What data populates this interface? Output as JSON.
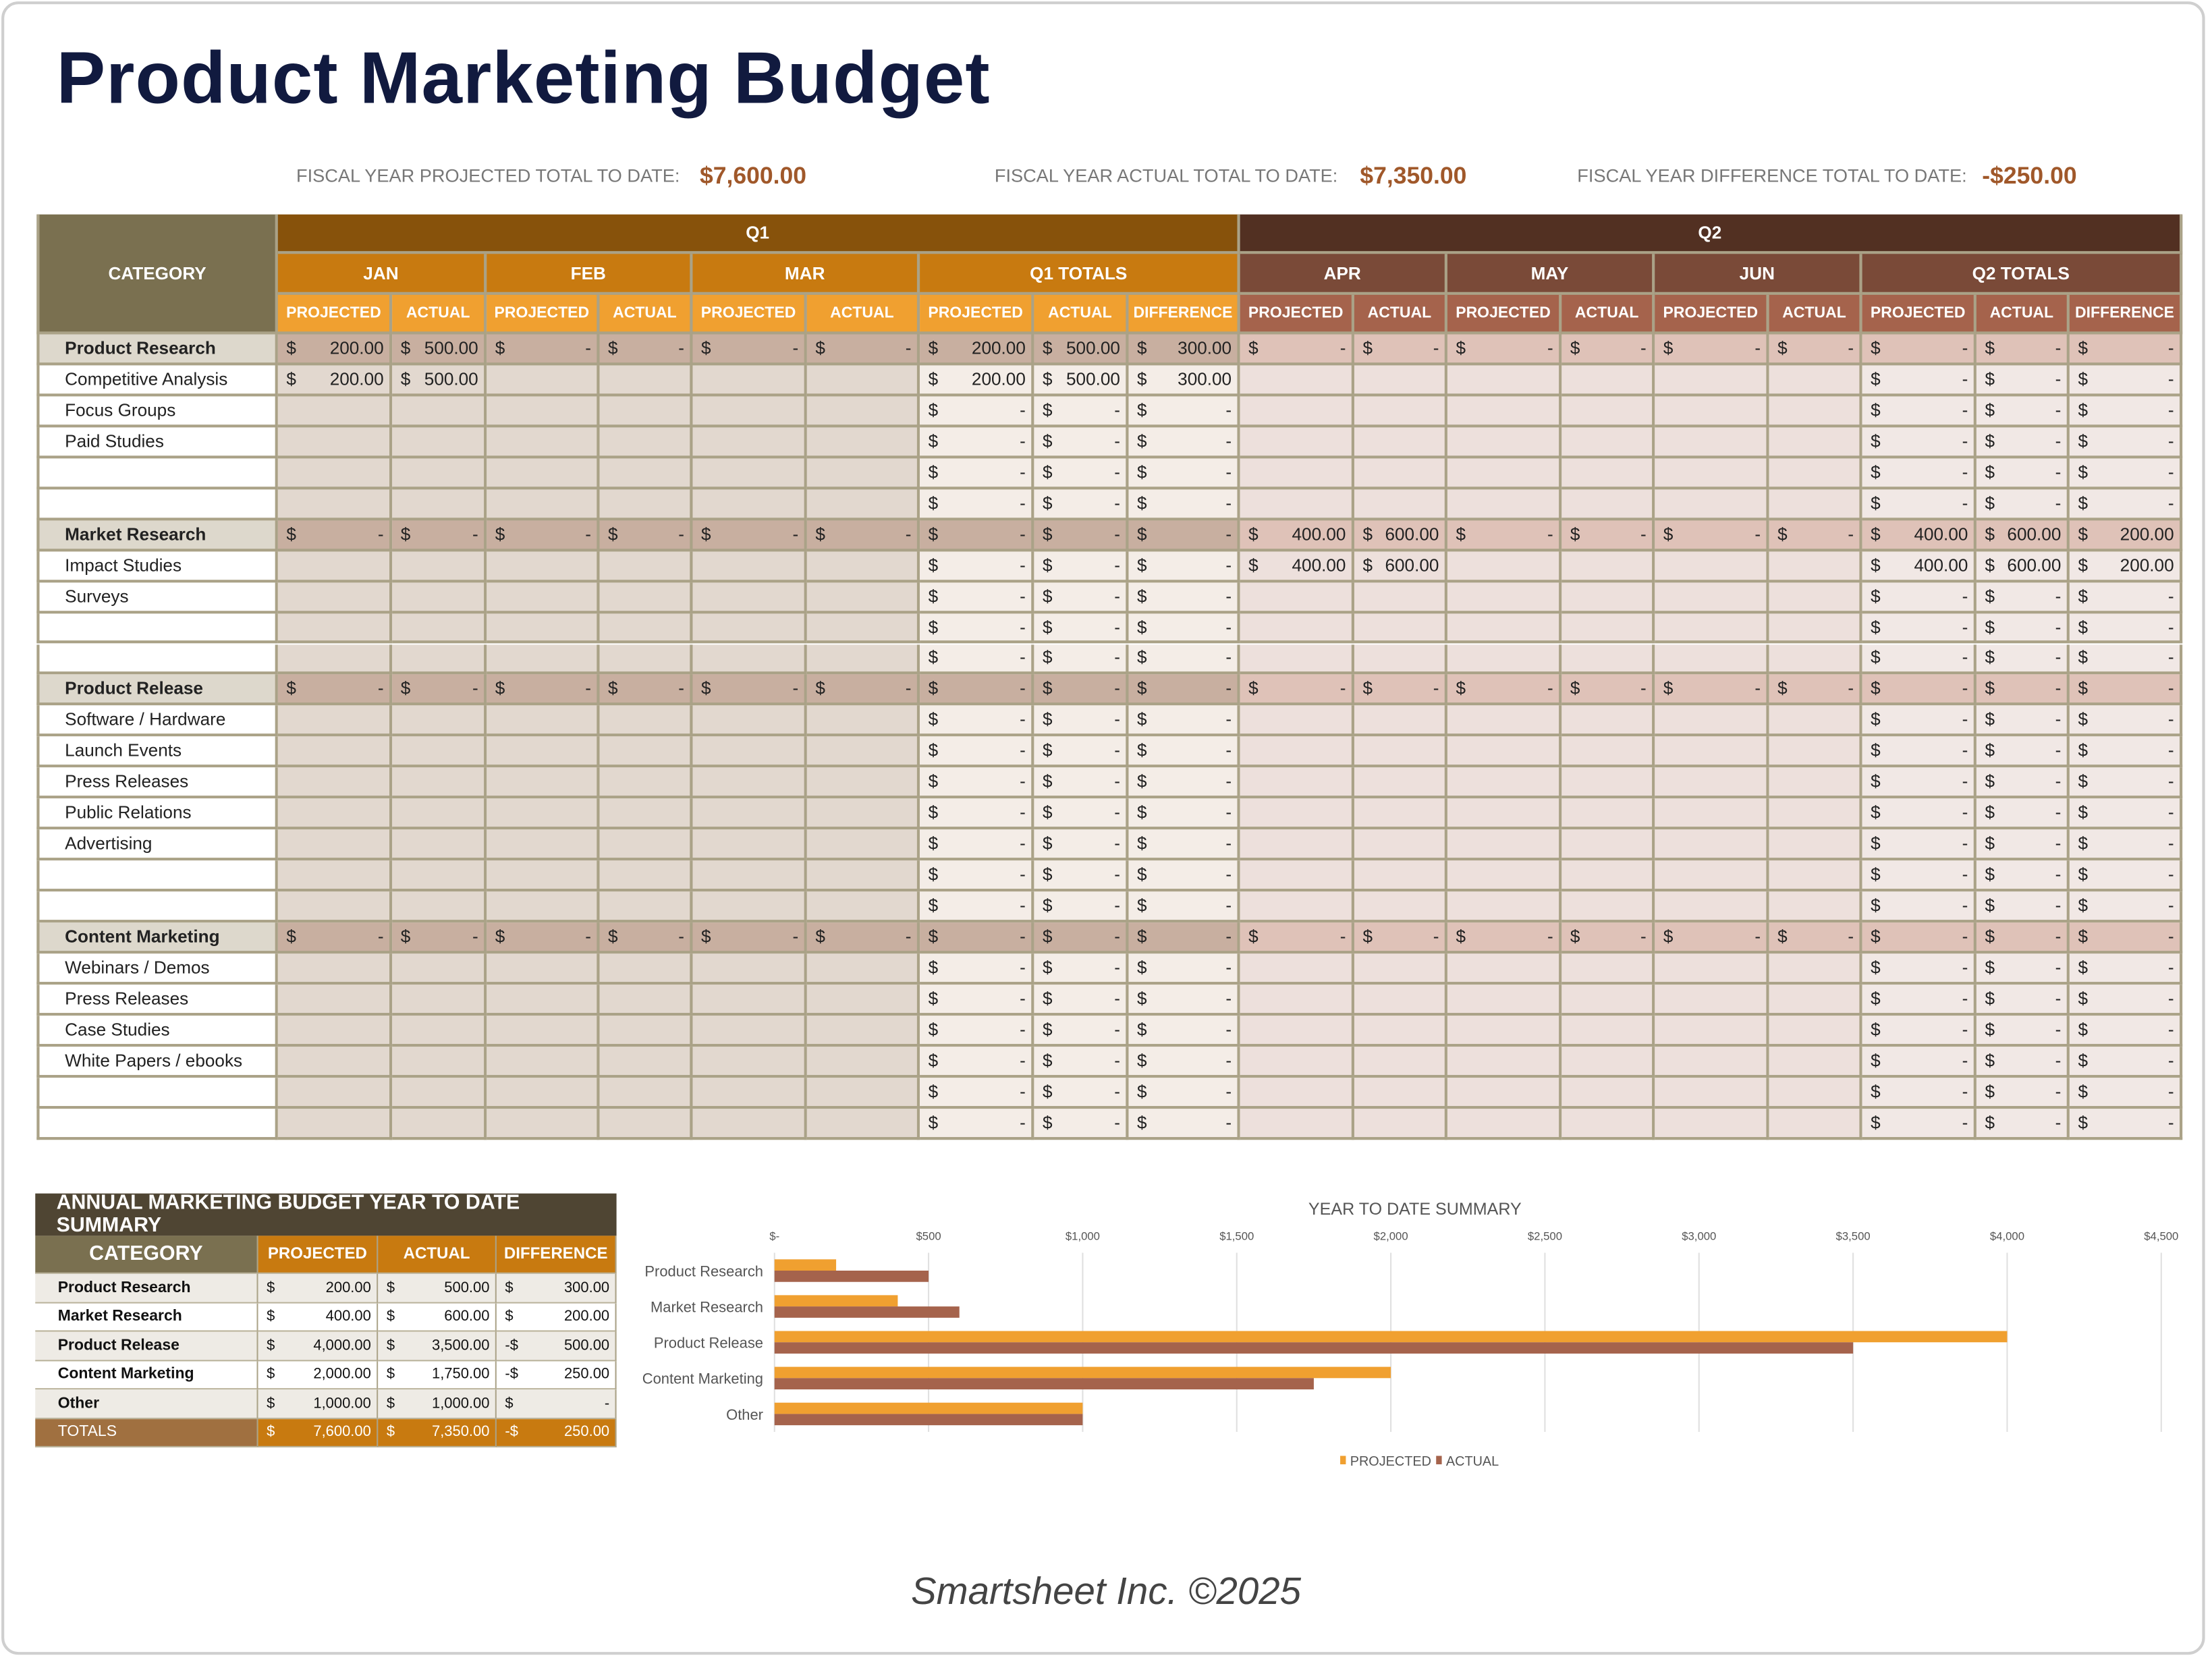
{
  "title": "Product Marketing Budget",
  "fiscal": {
    "projected_label": "FISCAL YEAR PROJECTED TOTAL TO DATE:",
    "projected_value": "$7,600.00",
    "actual_label": "FISCAL YEAR ACTUAL TOTAL TO DATE:",
    "actual_value": "$7,350.00",
    "difference_label": "FISCAL YEAR DIFFERENCE TOTAL TO DATE:",
    "difference_value": "-$250.00"
  },
  "table": {
    "category_header": "CATEGORY",
    "quarters": [
      "Q1",
      "Q2"
    ],
    "months": [
      "JAN",
      "FEB",
      "MAR",
      "Q1 TOTALS",
      "APR",
      "MAY",
      "JUN",
      "Q2 TOTALS"
    ],
    "sub_headers": [
      "PROJECTED",
      "ACTUAL",
      "PROJECTED",
      "ACTUAL",
      "PROJECTED",
      "ACTUAL",
      "PROJECTED",
      "ACTUAL",
      "DIFFERENCE",
      "PROJECTED",
      "ACTUAL",
      "PROJECTED",
      "ACTUAL",
      "PROJECTED",
      "ACTUAL",
      "PROJECTED",
      "ACTUAL",
      "DIFFERENCE"
    ],
    "currency_symbol": "$",
    "rows": [
      {
        "label": "Product Research",
        "group": true,
        "cells": [
          "200.00",
          "500.00",
          "-",
          "-",
          "-",
          "-",
          "200.00",
          "500.00",
          "300.00",
          "-",
          "-",
          "-",
          "-",
          "-",
          "-",
          "-",
          "-",
          "-"
        ]
      },
      {
        "label": "Competitive Analysis",
        "group": false,
        "cells": [
          "200.00",
          "500.00",
          "",
          "",
          "",
          "",
          "200.00",
          "500.00",
          "300.00",
          "",
          "",
          "",
          "",
          "",
          "",
          "-",
          "-",
          "-"
        ]
      },
      {
        "label": "Focus Groups",
        "group": false,
        "cells": [
          "",
          "",
          "",
          "",
          "",
          "",
          "-",
          "-",
          "-",
          "",
          "",
          "",
          "",
          "",
          "",
          "-",
          "-",
          "-"
        ]
      },
      {
        "label": "Paid Studies",
        "group": false,
        "cells": [
          "",
          "",
          "",
          "",
          "",
          "",
          "-",
          "-",
          "-",
          "",
          "",
          "",
          "",
          "",
          "",
          "-",
          "-",
          "-"
        ]
      },
      {
        "label": "",
        "group": false,
        "cells": [
          "",
          "",
          "",
          "",
          "",
          "",
          "-",
          "-",
          "-",
          "",
          "",
          "",
          "",
          "",
          "",
          "-",
          "-",
          "-"
        ]
      },
      {
        "label": "",
        "group": false,
        "cells": [
          "",
          "",
          "",
          "",
          "",
          "",
          "-",
          "-",
          "-",
          "",
          "",
          "",
          "",
          "",
          "",
          "-",
          "-",
          "-"
        ]
      },
      {
        "label": "Market Research",
        "group": true,
        "cells": [
          "-",
          "-",
          "-",
          "-",
          "-",
          "-",
          "-",
          "-",
          "-",
          "400.00",
          "600.00",
          "-",
          "-",
          "-",
          "-",
          "400.00",
          "600.00",
          "200.00"
        ]
      },
      {
        "label": "Impact Studies",
        "group": false,
        "cells": [
          "",
          "",
          "",
          "",
          "",
          "",
          "-",
          "-",
          "-",
          "400.00",
          "600.00",
          "",
          "",
          "",
          "",
          "400.00",
          "600.00",
          "200.00"
        ]
      },
      {
        "label": "Surveys",
        "group": false,
        "cells": [
          "",
          "",
          "",
          "",
          "",
          "",
          "-",
          "-",
          "-",
          "",
          "",
          "",
          "",
          "",
          "",
          "-",
          "-",
          "-"
        ]
      },
      {
        "label": "",
        "group": false,
        "cells": [
          "",
          "",
          "",
          "",
          "",
          "",
          "-",
          "-",
          "-",
          "",
          "",
          "",
          "",
          "",
          "",
          "-",
          "-",
          "-"
        ]
      },
      {
        "label": "",
        "group": false,
        "cells": [
          "",
          "",
          "",
          "",
          "",
          "",
          "-",
          "-",
          "-",
          "",
          "",
          "",
          "",
          "",
          "",
          "-",
          "-",
          "-"
        ]
      },
      {
        "label": "Product Release",
        "group": true,
        "cells": [
          "-",
          "-",
          "-",
          "-",
          "-",
          "-",
          "-",
          "-",
          "-",
          "-",
          "-",
          "-",
          "-",
          "-",
          "-",
          "-",
          "-",
          "-"
        ]
      },
      {
        "label": "Software / Hardware",
        "group": false,
        "cells": [
          "",
          "",
          "",
          "",
          "",
          "",
          "-",
          "-",
          "-",
          "",
          "",
          "",
          "",
          "",
          "",
          "-",
          "-",
          "-"
        ]
      },
      {
        "label": "Launch Events",
        "group": false,
        "cells": [
          "",
          "",
          "",
          "",
          "",
          "",
          "-",
          "-",
          "-",
          "",
          "",
          "",
          "",
          "",
          "",
          "-",
          "-",
          "-"
        ]
      },
      {
        "label": "Press Releases",
        "group": false,
        "cells": [
          "",
          "",
          "",
          "",
          "",
          "",
          "-",
          "-",
          "-",
          "",
          "",
          "",
          "",
          "",
          "",
          "-",
          "-",
          "-"
        ]
      },
      {
        "label": "Public Relations",
        "group": false,
        "cells": [
          "",
          "",
          "",
          "",
          "",
          "",
          "-",
          "-",
          "-",
          "",
          "",
          "",
          "",
          "",
          "",
          "-",
          "-",
          "-"
        ]
      },
      {
        "label": "Advertising",
        "group": false,
        "cells": [
          "",
          "",
          "",
          "",
          "",
          "",
          "-",
          "-",
          "-",
          "",
          "",
          "",
          "",
          "",
          "",
          "-",
          "-",
          "-"
        ]
      },
      {
        "label": "",
        "group": false,
        "cells": [
          "",
          "",
          "",
          "",
          "",
          "",
          "-",
          "-",
          "-",
          "",
          "",
          "",
          "",
          "",
          "",
          "-",
          "-",
          "-"
        ]
      },
      {
        "label": "",
        "group": false,
        "cells": [
          "",
          "",
          "",
          "",
          "",
          "",
          "-",
          "-",
          "-",
          "",
          "",
          "",
          "",
          "",
          "",
          "-",
          "-",
          "-"
        ]
      },
      {
        "label": "Content Marketing",
        "group": true,
        "cells": [
          "-",
          "-",
          "-",
          "-",
          "-",
          "-",
          "-",
          "-",
          "-",
          "-",
          "-",
          "-",
          "-",
          "-",
          "-",
          "-",
          "-",
          "-"
        ]
      },
      {
        "label": "Webinars / Demos",
        "group": false,
        "cells": [
          "",
          "",
          "",
          "",
          "",
          "",
          "-",
          "-",
          "-",
          "",
          "",
          "",
          "",
          "",
          "",
          "-",
          "-",
          "-"
        ]
      },
      {
        "label": "Press Releases",
        "group": false,
        "cells": [
          "",
          "",
          "",
          "",
          "",
          "",
          "-",
          "-",
          "-",
          "",
          "",
          "",
          "",
          "",
          "",
          "-",
          "-",
          "-"
        ]
      },
      {
        "label": "Case Studies",
        "group": false,
        "cells": [
          "",
          "",
          "",
          "",
          "",
          "",
          "-",
          "-",
          "-",
          "",
          "",
          "",
          "",
          "",
          "",
          "-",
          "-",
          "-"
        ]
      },
      {
        "label": "White Papers / ebooks",
        "group": false,
        "cells": [
          "",
          "",
          "",
          "",
          "",
          "",
          "-",
          "-",
          "-",
          "",
          "",
          "",
          "",
          "",
          "",
          "-",
          "-",
          "-"
        ]
      },
      {
        "label": "",
        "group": false,
        "cells": [
          "",
          "",
          "",
          "",
          "",
          "",
          "-",
          "-",
          "-",
          "",
          "",
          "",
          "",
          "",
          "",
          "-",
          "-",
          "-"
        ]
      },
      {
        "label": "",
        "group": false,
        "cells": [
          "",
          "",
          "",
          "",
          "",
          "",
          "-",
          "-",
          "-",
          "",
          "",
          "",
          "",
          "",
          "",
          "-",
          "-",
          "-"
        ]
      }
    ]
  },
  "summary": {
    "title": "ANNUAL MARKETING BUDGET YEAR TO DATE SUMMARY",
    "headers": [
      "CATEGORY",
      "PROJECTED",
      "ACTUAL",
      "DIFFERENCE"
    ],
    "rows": [
      {
        "category": "Product Research",
        "projected": "200.00",
        "actual": "500.00",
        "diff_sign": "$",
        "difference": "300.00"
      },
      {
        "category": "Market Research",
        "projected": "400.00",
        "actual": "600.00",
        "diff_sign": "$",
        "difference": "200.00"
      },
      {
        "category": "Product Release",
        "projected": "4,000.00",
        "actual": "3,500.00",
        "diff_sign": "-$",
        "difference": "500.00"
      },
      {
        "category": "Content Marketing",
        "projected": "2,000.00",
        "actual": "1,750.00",
        "diff_sign": "-$",
        "difference": "250.00"
      },
      {
        "category": "Other",
        "projected": "1,000.00",
        "actual": "1,000.00",
        "diff_sign": "$",
        "difference": "-"
      }
    ],
    "totals": {
      "category": "TOTALS",
      "projected": "7,600.00",
      "actual": "7,350.00",
      "diff_sign": "-$",
      "difference": "250.00"
    },
    "currency_symbol": "$"
  },
  "chart_data": {
    "type": "bar",
    "orientation": "horizontal",
    "title": "YEAR TO DATE SUMMARY",
    "categories": [
      "Product Research",
      "Market Research",
      "Product Release",
      "Content Marketing",
      "Other"
    ],
    "series": [
      {
        "name": "PROJECTED",
        "values": [
          200,
          400,
          4000,
          2000,
          1000
        ],
        "color": "#f0a030"
      },
      {
        "name": "ACTUAL",
        "values": [
          500,
          600,
          3500,
          1750,
          1000
        ],
        "color": "#a5634c"
      }
    ],
    "xlim": [
      0,
      4500
    ],
    "x_ticks": [
      0,
      500,
      1000,
      1500,
      2000,
      2500,
      3000,
      3500,
      4000,
      4500
    ],
    "x_tick_labels": [
      "$-",
      "$500",
      "$1,000",
      "$1,500",
      "$2,000",
      "$2,500",
      "$3,000",
      "$3,500",
      "$4,000",
      "$4,500"
    ],
    "x_axis_position": "top",
    "grid": true,
    "legend": "bottom"
  },
  "footer": "Smartsheet Inc. ©2025"
}
